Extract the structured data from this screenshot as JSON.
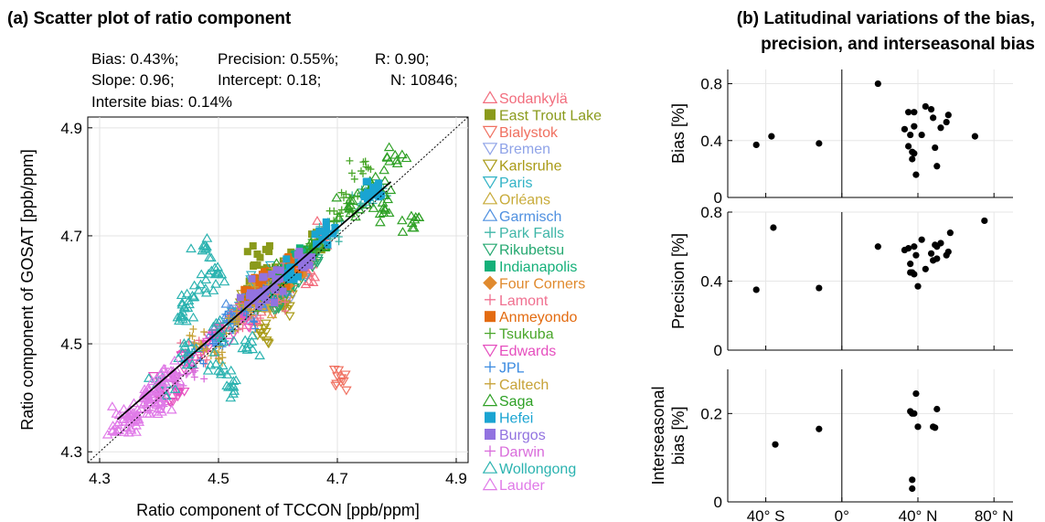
{
  "chart_data": [
    {
      "type": "scatter",
      "title": "(a) Scatter plot of ratio component",
      "stats": [
        "Bias: 0.43%;",
        "Precision: 0.55%;",
        "R: 0.90;",
        "Slope: 0.96;",
        "Intercept: 0.18;",
        "N: 10846;",
        "Intersite bias: 0.14%"
      ],
      "xlabel": "Ratio component of TCCON [ppb/ppm]",
      "ylabel": "Ratio component of GOSAT [ppb/ppm]",
      "xlim": [
        4.28,
        4.92
      ],
      "ylim": [
        4.28,
        4.92
      ],
      "xticks": [
        "4.3",
        "4.5",
        "4.7",
        "4.9"
      ],
      "yticks": [
        "4.3",
        "4.5",
        "4.7",
        "4.9"
      ],
      "one_to_one_line": true,
      "regression_line": {
        "x": [
          4.33,
          4.79
        ],
        "y": [
          4.36,
          4.8
        ]
      },
      "legend_placement": "right",
      "series": [
        {
          "name": "Sodankylä",
          "marker": "triangle-up",
          "color": "#f26d7d",
          "points": [
            [
              4.55,
              4.55
            ],
            [
              4.6,
              4.62
            ],
            [
              4.65,
              4.63
            ],
            [
              4.58,
              4.6
            ],
            [
              4.68,
              4.7
            ]
          ]
        },
        {
          "name": "East Trout Lake",
          "marker": "square",
          "color": "#8a9a1b",
          "points": [
            [
              4.56,
              4.6
            ],
            [
              4.62,
              4.65
            ],
            [
              4.59,
              4.63
            ],
            [
              4.66,
              4.68
            ],
            [
              4.6,
              4.62
            ],
            [
              4.57,
              4.66
            ]
          ]
        },
        {
          "name": "Bialystok",
          "marker": "triangle-down",
          "color": "#f07060",
          "points": [
            [
              4.55,
              4.57
            ],
            [
              4.61,
              4.6
            ],
            [
              4.63,
              4.66
            ],
            [
              4.58,
              4.57
            ],
            [
              4.7,
              4.44
            ]
          ]
        },
        {
          "name": "Bremen",
          "marker": "triangle-down",
          "color": "#8fa3e8",
          "points": [
            [
              4.56,
              4.58
            ],
            [
              4.6,
              4.61
            ],
            [
              4.62,
              4.6
            ],
            [
              4.54,
              4.55
            ]
          ]
        },
        {
          "name": "Karlsruhe",
          "marker": "triangle-down",
          "color": "#a99a16",
          "points": [
            [
              4.55,
              4.57
            ],
            [
              4.6,
              4.6
            ],
            [
              4.64,
              4.63
            ],
            [
              4.57,
              4.52
            ],
            [
              4.62,
              4.57
            ]
          ]
        },
        {
          "name": "Paris",
          "marker": "triangle-down",
          "color": "#31b3c6",
          "points": [
            [
              4.56,
              4.6
            ],
            [
              4.59,
              4.62
            ],
            [
              4.63,
              4.64
            ],
            [
              4.54,
              4.56
            ]
          ]
        },
        {
          "name": "Orléans",
          "marker": "triangle-up",
          "color": "#c8ab3a",
          "points": [
            [
              4.56,
              4.59
            ],
            [
              4.6,
              4.62
            ],
            [
              4.64,
              4.65
            ],
            [
              4.58,
              4.57
            ]
          ]
        },
        {
          "name": "Garmisch",
          "marker": "triangle-up",
          "color": "#4f90e0",
          "points": [
            [
              4.52,
              4.55
            ],
            [
              4.56,
              4.58
            ],
            [
              4.6,
              4.6
            ],
            [
              4.5,
              4.52
            ]
          ]
        },
        {
          "name": "Park Falls",
          "marker": "plus",
          "color": "#3fb6a8",
          "points": [
            [
              4.62,
              4.63
            ],
            [
              4.68,
              4.7
            ],
            [
              4.7,
              4.71
            ],
            [
              4.65,
              4.67
            ],
            [
              4.74,
              4.76
            ],
            [
              4.76,
              4.78
            ]
          ]
        },
        {
          "name": "Rikubetsu",
          "marker": "triangle-down",
          "color": "#25a870",
          "points": [
            [
              4.58,
              4.6
            ],
            [
              4.62,
              4.63
            ],
            [
              4.66,
              4.66
            ],
            [
              4.6,
              4.58
            ]
          ]
        },
        {
          "name": "Indianapolis",
          "marker": "square",
          "color": "#14b079",
          "points": [
            [
              4.6,
              4.62
            ],
            [
              4.64,
              4.66
            ]
          ]
        },
        {
          "name": "Four Corners",
          "marker": "diamond",
          "color": "#e08a2e",
          "points": [
            [
              4.57,
              4.6
            ],
            [
              4.61,
              4.62
            ],
            [
              4.63,
              4.64
            ]
          ]
        },
        {
          "name": "Lamont",
          "marker": "plus",
          "color": "#f07090",
          "points": [
            [
              4.46,
              4.5
            ],
            [
              4.52,
              4.54
            ],
            [
              4.58,
              4.6
            ],
            [
              4.62,
              4.64
            ],
            [
              4.48,
              4.47
            ],
            [
              4.55,
              4.55
            ],
            [
              4.6,
              4.58
            ]
          ]
        },
        {
          "name": "Anmeyondo",
          "marker": "square",
          "color": "#e36b10",
          "points": [
            [
              4.56,
              4.59
            ],
            [
              4.6,
              4.62
            ],
            [
              4.63,
              4.65
            ],
            [
              4.58,
              4.62
            ]
          ]
        },
        {
          "name": "Tsukuba",
          "marker": "plus",
          "color": "#4aa62a",
          "points": [
            [
              4.55,
              4.57
            ],
            [
              4.6,
              4.62
            ],
            [
              4.66,
              4.68
            ],
            [
              4.72,
              4.76
            ],
            [
              4.74,
              4.82
            ],
            [
              4.7,
              4.74
            ]
          ]
        },
        {
          "name": "Edwards",
          "marker": "triangle-down",
          "color": "#e64fbf",
          "points": [
            [
              4.4,
              4.42
            ],
            [
              4.45,
              4.47
            ],
            [
              4.5,
              4.52
            ],
            [
              4.54,
              4.55
            ],
            [
              4.43,
              4.41
            ],
            [
              4.48,
              4.5
            ]
          ]
        },
        {
          "name": "JPL",
          "marker": "plus",
          "color": "#3a8ae0",
          "points": [
            [
              4.46,
              4.49
            ],
            [
              4.52,
              4.54
            ],
            [
              4.58,
              4.6
            ],
            [
              4.5,
              4.5
            ],
            [
              4.55,
              4.56
            ]
          ]
        },
        {
          "name": "Caltech",
          "marker": "plus",
          "color": "#c7a237",
          "points": [
            [
              4.47,
              4.5
            ],
            [
              4.53,
              4.55
            ],
            [
              4.59,
              4.61
            ],
            [
              4.5,
              4.48
            ],
            [
              4.56,
              4.57
            ]
          ]
        },
        {
          "name": "Saga",
          "marker": "triangle-up",
          "color": "#2ea025",
          "points": [
            [
              4.6,
              4.63
            ],
            [
              4.66,
              4.68
            ],
            [
              4.72,
              4.75
            ],
            [
              4.75,
              4.78
            ],
            [
              4.8,
              4.84
            ],
            [
              4.77,
              4.79
            ],
            [
              4.83,
              4.73
            ],
            [
              4.78,
              4.75
            ]
          ]
        },
        {
          "name": "Hefei",
          "marker": "square",
          "color": "#1aa4d2",
          "points": [
            [
              4.62,
              4.64
            ],
            [
              4.68,
              4.7
            ],
            [
              4.76,
              4.78
            ],
            [
              4.76,
              4.79
            ]
          ]
        },
        {
          "name": "Burgos",
          "marker": "square",
          "color": "#9273e0",
          "points": [
            [
              4.56,
              4.58
            ],
            [
              4.6,
              4.62
            ],
            [
              4.64,
              4.66
            ],
            [
              4.58,
              4.6
            ]
          ]
        },
        {
          "name": "Darwin",
          "marker": "plus",
          "color": "#d96bdb",
          "points": [
            [
              4.4,
              4.4
            ],
            [
              4.43,
              4.43
            ],
            [
              4.46,
              4.45
            ],
            [
              4.42,
              4.44
            ],
            [
              4.38,
              4.39
            ]
          ]
        },
        {
          "name": "Wollongong",
          "marker": "triangle-up",
          "color": "#2bb3b0",
          "points": [
            [
              4.4,
              4.42
            ],
            [
              4.45,
              4.48
            ],
            [
              4.5,
              4.52
            ],
            [
              4.44,
              4.55
            ],
            [
              4.47,
              4.61
            ],
            [
              4.48,
              4.68
            ],
            [
              4.5,
              4.63
            ],
            [
              4.45,
              4.58
            ],
            [
              4.52,
              4.42
            ],
            [
              4.5,
              4.45
            ],
            [
              4.55,
              4.5
            ]
          ]
        },
        {
          "name": "Lauder",
          "marker": "triangle-up",
          "color": "#e07ae8",
          "points": [
            [
              4.33,
              4.35
            ],
            [
              4.35,
              4.37
            ],
            [
              4.37,
              4.38
            ],
            [
              4.39,
              4.4
            ],
            [
              4.41,
              4.43
            ],
            [
              4.36,
              4.36
            ],
            [
              4.38,
              4.41
            ],
            [
              4.34,
              4.36
            ],
            [
              4.4,
              4.38
            ],
            [
              4.42,
              4.45
            ]
          ]
        }
      ]
    },
    {
      "type": "scatter",
      "title": "(b) Latitudinal variations of the bias,",
      "title_line2": "precision, and interseasonal bias",
      "shared_x": {
        "xlim": [
          -60,
          90
        ],
        "ticks": [
          -40,
          0,
          40,
          80
        ],
        "ticklabels": [
          "40° S",
          "0°",
          "40° N",
          "80° N"
        ],
        "vertical_line_at": 0
      },
      "panels": [
        {
          "ylabel": "Bias [%]",
          "ylim": [
            0,
            0.9
          ],
          "yticks": [
            "0",
            "0.4",
            "0.8"
          ],
          "points": [
            [
              -45,
              0.37
            ],
            [
              -37,
              0.43
            ],
            [
              -12,
              0.38
            ],
            [
              19,
              0.8
            ],
            [
              33,
              0.48
            ],
            [
              35,
              0.6
            ],
            [
              35,
              0.36
            ],
            [
              36,
              0.44
            ],
            [
              37,
              0.32
            ],
            [
              38,
              0.6
            ],
            [
              37,
              0.27
            ],
            [
              38,
              0.5
            ],
            [
              38,
              0.31
            ],
            [
              39,
              0.16
            ],
            [
              42,
              0.44
            ],
            [
              44,
              0.64
            ],
            [
              47,
              0.62
            ],
            [
              48,
              0.56
            ],
            [
              49,
              0.35
            ],
            [
              50,
              0.22
            ],
            [
              52,
              0.49
            ],
            [
              55,
              0.53
            ],
            [
              56,
              0.58
            ],
            [
              70,
              0.43
            ]
          ]
        },
        {
          "ylabel": "Precision [%]",
          "ylim": [
            0,
            0.8
          ],
          "yticks": [
            "0",
            "0.4",
            "0.8"
          ],
          "points": [
            [
              -45,
              0.35
            ],
            [
              -36,
              0.71
            ],
            [
              -12,
              0.36
            ],
            [
              19,
              0.6
            ],
            [
              33,
              0.58
            ],
            [
              35,
              0.59
            ],
            [
              36,
              0.45
            ],
            [
              36,
              0.5
            ],
            [
              37,
              0.45
            ],
            [
              38,
              0.6
            ],
            [
              38,
              0.44
            ],
            [
              39,
              0.55
            ],
            [
              40,
              0.37
            ],
            [
              42,
              0.64
            ],
            [
              44,
              0.47
            ],
            [
              47,
              0.56
            ],
            [
              48,
              0.52
            ],
            [
              49,
              0.61
            ],
            [
              50,
              0.6
            ],
            [
              50,
              0.53
            ],
            [
              52,
              0.62
            ],
            [
              55,
              0.55
            ],
            [
              56,
              0.57
            ],
            [
              57,
              0.68
            ],
            [
              75,
              0.75
            ]
          ]
        },
        {
          "ylabel": "Interseasonal",
          "ylabel2": "bias [%]",
          "ylim": [
            0,
            0.3
          ],
          "yticks": [
            "0",
            "0.2"
          ],
          "points": [
            [
              -35,
              0.13
            ],
            [
              -12,
              0.165
            ],
            [
              36,
              0.205
            ],
            [
              37,
              0.2
            ],
            [
              37,
              0.05
            ],
            [
              37,
              0.03
            ],
            [
              38,
              0.2
            ],
            [
              39,
              0.245
            ],
            [
              40,
              0.17
            ],
            [
              48,
              0.17
            ],
            [
              49,
              0.168
            ],
            [
              50,
              0.21
            ]
          ]
        }
      ]
    }
  ]
}
